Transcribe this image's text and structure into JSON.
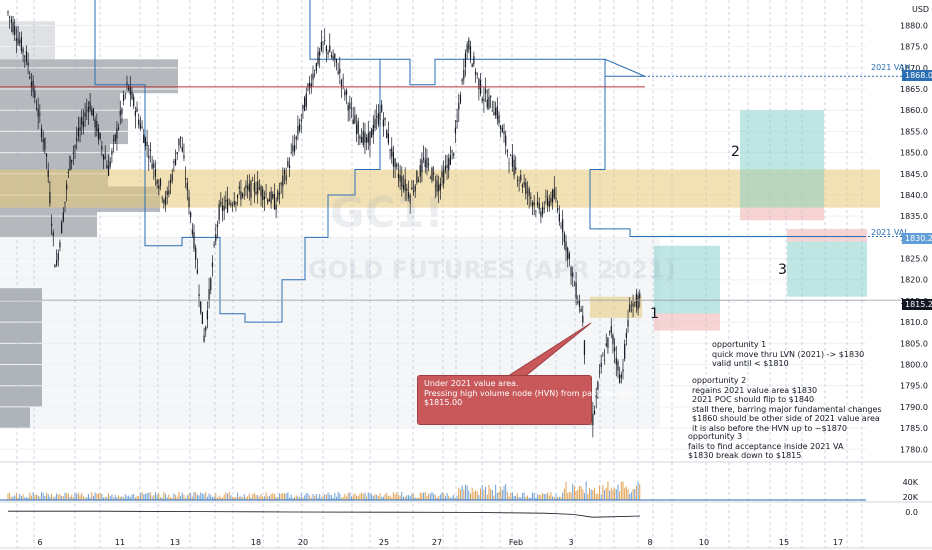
{
  "currency": "USD",
  "watermark": {
    "symbol": "GC1!",
    "name": "GOLD FUTURES (APR 2021)"
  },
  "annotations": {
    "callout": "Under 2021 value area.\nPressing high volume node (HVN) from past two days\n$1815.00",
    "opportunity1": "opportunity 1\nquick move thru LVN (2021) -> $1830\nvalid until < $1810",
    "opportunity2": "opportunity 2\nregains 2021 value area $1830\n2021 POC should flip to $1840\nstall there, barring major fundamental changes\n$1860 should be other side of 2021 value area\nit is also before the HVN up to ~$1870",
    "opportunity3": "opportunity 3\nfails to find acceptance inside 2021 VA\n$1830 break down to $1815",
    "num1": "1",
    "num2": "2",
    "num3": "3"
  },
  "level_tags": {
    "vah": "2021 VAH",
    "val": "2021 VAL"
  },
  "price_boxes": {
    "vah": "1868.0",
    "val": "1830.2",
    "last": "1815.2"
  },
  "colors": {
    "candles": "#131722",
    "blue_line": "#2a6eb4",
    "red_line": "#b3373b",
    "poc_band": "rgba(232,200,120,0.55)",
    "teal_box": "rgba(130,205,200,0.5)",
    "pink_box": "rgba(240,170,170,0.5)",
    "volume": "#e0a050",
    "volume_bars_blue": "#6fa0d8"
  },
  "chart_data": {
    "type": "candlestick",
    "y_axis": {
      "ticks": [
        1880.0,
        1875.0,
        1870.0,
        1865.0,
        1860.0,
        1855.0,
        1850.0,
        1845.0,
        1840.0,
        1835.0,
        1830.0,
        1825.0,
        1820.0,
        1815.0,
        1810.0,
        1805.0,
        1800.0,
        1795.0,
        1790.0,
        1785.0,
        1780.0
      ],
      "range": [
        1777,
        1886
      ]
    },
    "x_axis": {
      "ticks": [
        "6",
        "11",
        "13",
        "18",
        "20",
        "25",
        "27",
        "Feb",
        "3",
        "8",
        "10",
        "15",
        "17"
      ]
    },
    "levels": {
      "vah_2021": 1868.0,
      "val_2021": 1830.2,
      "last": 1815.2,
      "red_line": 1865.5
    },
    "price_path": [
      [
        0,
        1883
      ],
      [
        4,
        1872
      ],
      [
        8,
        1850
      ],
      [
        10,
        1822
      ],
      [
        13,
        1848
      ],
      [
        17,
        1862
      ],
      [
        21,
        1846
      ],
      [
        25,
        1866
      ],
      [
        29,
        1852
      ],
      [
        33,
        1838
      ],
      [
        36,
        1854
      ],
      [
        39,
        1828
      ],
      [
        41,
        1806
      ],
      [
        44,
        1836
      ],
      [
        48,
        1840
      ],
      [
        52,
        1842
      ],
      [
        56,
        1838
      ],
      [
        60,
        1852
      ],
      [
        63,
        1866
      ],
      [
        66,
        1876
      ],
      [
        69,
        1870
      ],
      [
        72,
        1858
      ],
      [
        75,
        1852
      ],
      [
        78,
        1860
      ],
      [
        81,
        1846
      ],
      [
        84,
        1840
      ],
      [
        87,
        1848
      ],
      [
        90,
        1842
      ],
      [
        93,
        1850
      ],
      [
        96,
        1876
      ],
      [
        99,
        1864
      ],
      [
        102,
        1860
      ],
      [
        105,
        1848
      ],
      [
        108,
        1842
      ],
      [
        111,
        1836
      ],
      [
        114,
        1840
      ],
      [
        116,
        1832
      ],
      [
        118,
        1820
      ],
      [
        120,
        1812
      ],
      [
        121,
        1792
      ],
      [
        122,
        1786
      ],
      [
        124,
        1800
      ],
      [
        126,
        1808
      ],
      [
        128,
        1796
      ],
      [
        130,
        1814
      ],
      [
        132,
        1815
      ]
    ],
    "volume_axis": {
      "ticks": [
        "40K",
        "20K"
      ]
    },
    "indicator_axis": {
      "ticks": [
        "0.0"
      ]
    },
    "indicator_path": [
      [
        0,
        0.02
      ],
      [
        20,
        0.02
      ],
      [
        40,
        0.01
      ],
      [
        60,
        0.0
      ],
      [
        80,
        -0.005
      ],
      [
        96,
        -0.01
      ],
      [
        104,
        -0.02
      ],
      [
        112,
        -0.03
      ],
      [
        118,
        -0.06
      ],
      [
        122,
        -0.13
      ],
      [
        126,
        -0.12
      ],
      [
        132,
        -0.1
      ]
    ]
  }
}
